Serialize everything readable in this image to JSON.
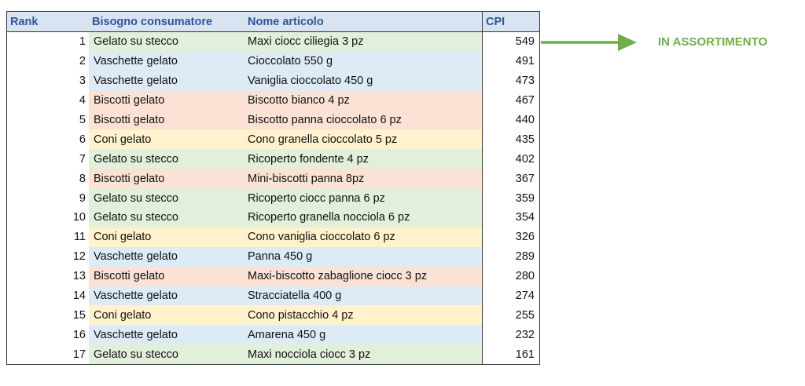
{
  "table": {
    "headers": {
      "rank": "Rank",
      "need": "Bisogno consumatore",
      "item": "Nome articolo",
      "cpi": "CPI"
    },
    "rows": [
      {
        "rank": "1",
        "need": "Gelato su stecco",
        "item": "Maxi ciocc ciliegia 3 pz",
        "cpi": "549"
      },
      {
        "rank": "2",
        "need": "Vaschette gelato",
        "item": "Cioccolato 550 g",
        "cpi": "491"
      },
      {
        "rank": "3",
        "need": "Vaschette gelato",
        "item": "Vaniglia cioccolato 450 g",
        "cpi": "473"
      },
      {
        "rank": "4",
        "need": "Biscotti gelato",
        "item": "Biscotto bianco 4 pz",
        "cpi": "467"
      },
      {
        "rank": "5",
        "need": "Biscotti gelato",
        "item": "Biscotto panna cioccolato 6 pz",
        "cpi": "440"
      },
      {
        "rank": "6",
        "need": "Coni gelato",
        "item": "Cono granella cioccolato 5 pz",
        "cpi": "435"
      },
      {
        "rank": "7",
        "need": "Gelato su stecco",
        "item": "Ricoperto fondente 4 pz",
        "cpi": "402"
      },
      {
        "rank": "8",
        "need": "Biscotti gelato",
        "item": "Mini-biscotti panna 8pz",
        "cpi": "367"
      },
      {
        "rank": "9",
        "need": "Gelato su stecco",
        "item": "Ricoperto ciocc panna 6 pz",
        "cpi": "359"
      },
      {
        "rank": "10",
        "need": "Gelato su stecco",
        "item": "Ricoperto granella nocciola 6 pz",
        "cpi": "354"
      },
      {
        "rank": "11",
        "need": "Coni gelato",
        "item": "Cono vaniglia cioccolato 6 pz",
        "cpi": "326"
      },
      {
        "rank": "12",
        "need": "Vaschette gelato",
        "item": "Panna 450 g",
        "cpi": "289"
      },
      {
        "rank": "13",
        "need": "Biscotti gelato",
        "item": "Maxi-biscotto zabaglione ciocc 3 pz",
        "cpi": "280"
      },
      {
        "rank": "14",
        "need": "Vaschette gelato",
        "item": "Stracciatella 400 g",
        "cpi": "274"
      },
      {
        "rank": "15",
        "need": "Coni gelato",
        "item": "Cono pistacchio 4 pz",
        "cpi": "255"
      },
      {
        "rank": "16",
        "need": "Vaschette gelato",
        "item": "Amarena 450 g",
        "cpi": "232"
      },
      {
        "rank": "17",
        "need": "Gelato su stecco",
        "item": "Maxi nocciola ciocc 3 pz",
        "cpi": "161"
      }
    ]
  },
  "category_colors": {
    "Gelato su stecco": "#e2efda",
    "Vaschette gelato": "#ddebf7",
    "Biscotti gelato": "#fbe2d5",
    "Coni gelato": "#fff2cc"
  },
  "annotation": {
    "arrow_icon": "right-arrow-icon",
    "arrow_color": "#70ad47",
    "label": "IN ASSORTIMENTO"
  }
}
